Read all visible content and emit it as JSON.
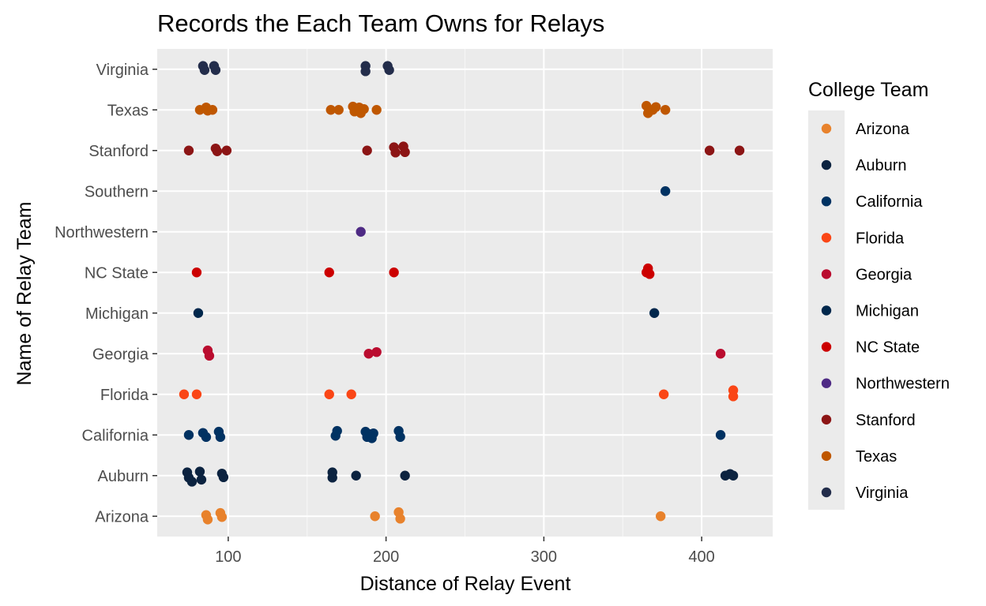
{
  "chart_data": {
    "type": "scatter",
    "title": "Records the Each Team Owns for Relays",
    "xlabel": "Distance of Relay Event",
    "ylabel": "Name of Relay Team",
    "xlim": [
      55,
      445
    ],
    "x_ticks": [
      100,
      200,
      300,
      400
    ],
    "y_categories": [
      "Arizona",
      "Auburn",
      "California",
      "Florida",
      "Georgia",
      "Michigan",
      "NC State",
      "Northwestern",
      "Southern",
      "Stanford",
      "Texas",
      "Virginia"
    ],
    "grid": true,
    "legend": {
      "title": "College Team",
      "position": "right",
      "entries": [
        "Arizona",
        "Auburn",
        "California",
        "Florida",
        "Georgia",
        "Michigan",
        "NC State",
        "Northwestern",
        "Stanford",
        "Texas",
        "Virginia"
      ]
    },
    "colors": {
      "Arizona": "#E8822C",
      "Auburn": "#0C2340",
      "California": "#003262",
      "Florida": "#FA4616",
      "Georgia": "#BA0C2F",
      "Michigan": "#00274C",
      "NC State": "#CC0000",
      "Northwestern": "#4E2A84",
      "Southern": "#003262",
      "Stanford": "#8C1515",
      "Texas": "#BF5700",
      "Virginia": "#232D4B"
    },
    "series": [
      {
        "team": "Arizona",
        "points": [
          [
            86,
            0.03
          ],
          [
            87,
            -0.08
          ],
          [
            95,
            0.08
          ],
          [
            96,
            -0.02
          ],
          [
            193,
            0.0
          ],
          [
            208,
            0.1
          ],
          [
            209,
            -0.06
          ],
          [
            374,
            0.0
          ]
        ]
      },
      {
        "team": "Auburn",
        "points": [
          [
            74,
            0.08
          ],
          [
            75,
            -0.05
          ],
          [
            77,
            -0.15
          ],
          [
            82,
            0.1
          ],
          [
            83,
            -0.1
          ],
          [
            96,
            0.05
          ],
          [
            97,
            -0.04
          ],
          [
            166,
            0.08
          ],
          [
            166,
            -0.05
          ],
          [
            181,
            0.0
          ],
          [
            212,
            0.0
          ],
          [
            415,
            0.0
          ],
          [
            418,
            0.04
          ],
          [
            420,
            0.0
          ]
        ]
      },
      {
        "team": "California",
        "points": [
          [
            75,
            0.0
          ],
          [
            84,
            0.05
          ],
          [
            86,
            -0.05
          ],
          [
            94,
            0.08
          ],
          [
            95,
            -0.05
          ],
          [
            168,
            -0.02
          ],
          [
            169,
            0.1
          ],
          [
            187,
            0.08
          ],
          [
            188,
            -0.05
          ],
          [
            190,
            0.02
          ],
          [
            191,
            -0.08
          ],
          [
            192,
            0.04
          ],
          [
            208,
            0.1
          ],
          [
            209,
            -0.05
          ],
          [
            412,
            0.0
          ]
        ]
      },
      {
        "team": "Florida",
        "points": [
          [
            72,
            0.0
          ],
          [
            80,
            0.0
          ],
          [
            164,
            0.0
          ],
          [
            178,
            0.0
          ],
          [
            376,
            0.0
          ],
          [
            420,
            0.1
          ],
          [
            420,
            -0.05
          ]
        ]
      },
      {
        "team": "Georgia",
        "points": [
          [
            87,
            0.08
          ],
          [
            88,
            -0.05
          ],
          [
            189,
            0.0
          ],
          [
            194,
            0.04
          ],
          [
            412,
            0.0
          ]
        ]
      },
      {
        "team": "Michigan",
        "points": [
          [
            81,
            0.0
          ],
          [
            370,
            0.0
          ]
        ]
      },
      {
        "team": "NC State",
        "points": [
          [
            80,
            0.0
          ],
          [
            164,
            0.0
          ],
          [
            205,
            0.0
          ],
          [
            365,
            0.0
          ],
          [
            366,
            0.1
          ],
          [
            367,
            -0.04
          ]
        ]
      },
      {
        "team": "Northwestern",
        "points": [
          [
            184,
            0.0
          ]
        ]
      },
      {
        "team": "Southern",
        "points": [
          [
            377,
            0.0
          ]
        ]
      },
      {
        "team": "Stanford",
        "points": [
          [
            75,
            0.0
          ],
          [
            92,
            0.05
          ],
          [
            93,
            -0.02
          ],
          [
            99,
            0.0
          ],
          [
            188,
            0.0
          ],
          [
            205,
            0.08
          ],
          [
            206,
            -0.05
          ],
          [
            211,
            0.1
          ],
          [
            212,
            -0.04
          ],
          [
            405,
            0.0
          ],
          [
            424,
            0.0
          ]
        ]
      },
      {
        "team": "Texas",
        "points": [
          [
            82,
            0.0
          ],
          [
            86,
            0.06
          ],
          [
            87,
            -0.02
          ],
          [
            90,
            0.0
          ],
          [
            165,
            0.0
          ],
          [
            170,
            0.0
          ],
          [
            179,
            0.08
          ],
          [
            180,
            -0.04
          ],
          [
            183,
            0.06
          ],
          [
            184,
            -0.08
          ],
          [
            186,
            0.02
          ],
          [
            194,
            0.0
          ],
          [
            365,
            0.1
          ],
          [
            366,
            -0.08
          ],
          [
            369,
            0.0
          ],
          [
            371,
            0.07
          ],
          [
            377,
            0.0
          ]
        ]
      },
      {
        "team": "Virginia",
        "points": [
          [
            84,
            0.08
          ],
          [
            85,
            -0.02
          ],
          [
            91,
            0.08
          ],
          [
            92,
            -0.02
          ],
          [
            187,
            0.08
          ],
          [
            187,
            -0.05
          ],
          [
            201,
            0.08
          ],
          [
            202,
            -0.02
          ]
        ]
      }
    ]
  }
}
